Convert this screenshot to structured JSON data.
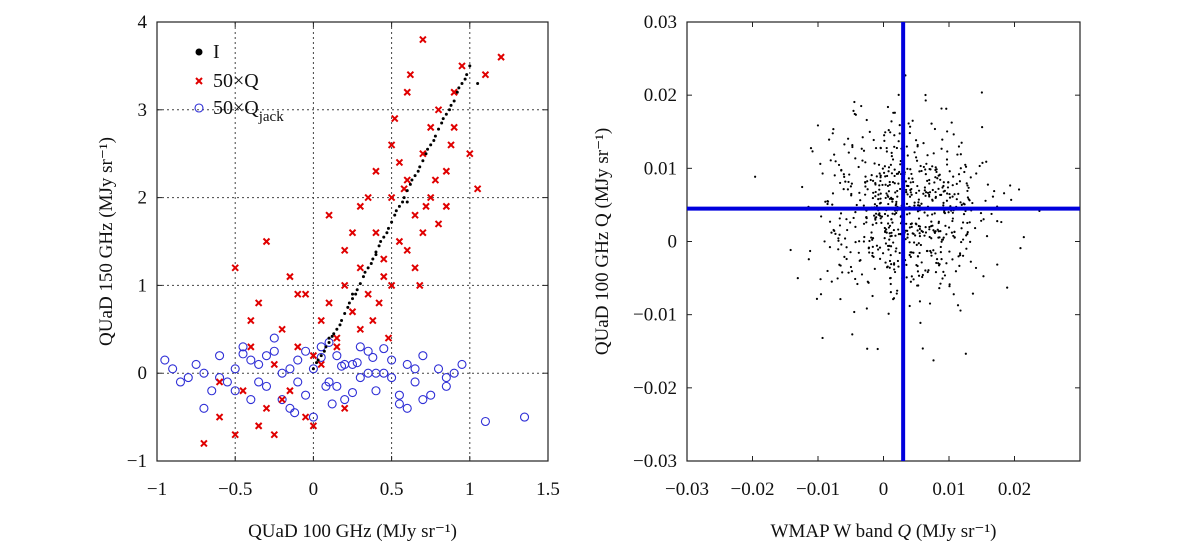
{
  "chart_data": [
    {
      "type": "scatter",
      "xlabel": "QUaD 100 GHz (MJy sr⁻¹)",
      "ylabel": "QUaD 150 GHz (MJy sr⁻¹)",
      "xlim": [
        -1,
        1.5
      ],
      "ylim": [
        -1,
        4
      ],
      "xticks": [
        -1,
        -0.5,
        0,
        0.5,
        1,
        1.5
      ],
      "xtick_labels": [
        "−1",
        "−0.5",
        "0",
        "0.5",
        "1",
        "1.5"
      ],
      "yticks": [
        -1,
        0,
        1,
        2,
        3,
        4
      ],
      "ytick_labels": [
        "−1",
        "0",
        "1",
        "2",
        "3",
        "4"
      ],
      "grid": true,
      "legend_position": "top-left",
      "series": [
        {
          "name": "I",
          "marker": "dot",
          "color": "#000000",
          "x": [
            0.0,
            0.02,
            0.05,
            0.08,
            0.1,
            0.12,
            0.15,
            0.18,
            0.2,
            0.22,
            0.25,
            0.28,
            0.3,
            0.32,
            0.35,
            0.38,
            0.4,
            0.42,
            0.45,
            0.48,
            0.5,
            0.52,
            0.55,
            0.58,
            0.6,
            0.62,
            0.65,
            0.68,
            0.7,
            0.72,
            0.75,
            0.78,
            0.8,
            0.82,
            0.85,
            0.88,
            0.9,
            0.92,
            0.95,
            0.98,
            1.0,
            1.05,
            0.03,
            0.07,
            0.13,
            0.17,
            0.23,
            0.27,
            0.33,
            0.37,
            0.43,
            0.47,
            0.53,
            0.57,
            0.63,
            0.67,
            0.73,
            0.77,
            0.83,
            0.87,
            0.93,
            0.97,
            0.6,
            0.4,
            0.25,
            0.1
          ],
          "y": [
            0.05,
            0.12,
            0.2,
            0.3,
            0.35,
            0.42,
            0.5,
            0.6,
            0.68,
            0.75,
            0.85,
            0.95,
            1.02,
            1.1,
            1.2,
            1.3,
            1.38,
            1.45,
            1.55,
            1.65,
            1.72,
            1.8,
            1.9,
            2.0,
            2.08,
            2.15,
            2.25,
            2.35,
            2.42,
            2.5,
            2.6,
            2.7,
            2.78,
            2.85,
            2.95,
            3.05,
            3.1,
            3.2,
            3.3,
            3.4,
            3.5,
            3.3,
            0.15,
            0.25,
            0.45,
            0.55,
            0.8,
            0.9,
            1.15,
            1.25,
            1.5,
            1.6,
            1.85,
            1.95,
            2.2,
            2.3,
            2.55,
            2.65,
            2.9,
            3.0,
            3.25,
            3.35,
            1.95,
            1.35,
            0.9,
            0.4
          ]
        },
        {
          "name": "50×Q",
          "marker": "x",
          "color": "#e00000",
          "x": [
            -0.7,
            -0.6,
            -0.5,
            -0.45,
            -0.4,
            -0.35,
            -0.3,
            -0.25,
            -0.2,
            -0.15,
            -0.1,
            -0.05,
            0.0,
            0.05,
            0.1,
            0.15,
            0.2,
            0.25,
            0.3,
            0.35,
            0.4,
            0.45,
            0.5,
            0.55,
            0.6,
            0.65,
            0.7,
            0.75,
            0.8,
            0.85,
            0.9,
            0.95,
            1.0,
            1.1,
            1.2,
            -0.5,
            -0.3,
            -0.1,
            0.1,
            0.3,
            0.5,
            0.7,
            0.9,
            -0.4,
            -0.2,
            0.0,
            0.2,
            0.4,
            0.6,
            0.8,
            0.3,
            0.45,
            0.6,
            0.75,
            0.15,
            0.35,
            0.55,
            0.65,
            0.85,
            -0.25,
            -0.05,
            0.25,
            0.5,
            0.7,
            0.42,
            0.58,
            0.68,
            0.78,
            0.2,
            0.38,
            -0.6,
            -0.35,
            -0.15,
            0.05,
            0.52,
            0.62,
            0.72,
            0.48,
            0.88,
            1.05
          ],
          "y": [
            -0.8,
            -0.5,
            -0.7,
            -0.2,
            0.3,
            -0.6,
            -0.4,
            0.1,
            0.5,
            -0.2,
            0.3,
            -0.5,
            0.2,
            0.6,
            0.8,
            0.4,
            1.0,
            0.7,
            1.2,
            0.9,
            1.6,
            1.3,
            2.0,
            1.5,
            2.2,
            1.8,
            2.5,
            2.0,
            3.0,
            2.3,
            2.8,
            3.5,
            2.5,
            3.4,
            3.6,
            1.2,
            1.5,
            0.9,
            1.8,
            1.9,
            2.6,
            3.8,
            3.2,
            0.6,
            -0.3,
            -0.6,
            1.4,
            2.3,
            3.2,
            1.7,
            0.5,
            1.1,
            1.4,
            2.8,
            0.3,
            2.0,
            2.4,
            1.2,
            1.9,
            -0.7,
            0.9,
            1.6,
            1.0,
            1.6,
            0.8,
            2.1,
            1.0,
            2.2,
            -0.4,
            0.6,
            -0.1,
            0.8,
            1.1,
            0.1,
            2.9,
            3.4,
            1.9,
            0.4,
            2.6,
            2.1
          ]
        },
        {
          "name": "50×Q",
          "name_subscript": "jack",
          "marker": "circle",
          "color": "#2f2fd6",
          "x": [
            -0.95,
            -0.9,
            -0.85,
            -0.8,
            -0.75,
            -0.7,
            -0.65,
            -0.6,
            -0.55,
            -0.5,
            -0.45,
            -0.4,
            -0.35,
            -0.3,
            -0.25,
            -0.2,
            -0.15,
            -0.1,
            -0.05,
            0.0,
            0.05,
            0.1,
            0.15,
            0.2,
            0.25,
            0.3,
            0.35,
            0.4,
            0.45,
            0.5,
            0.55,
            0.6,
            0.65,
            0.7,
            0.75,
            0.8,
            0.85,
            0.9,
            0.95,
            1.1,
            1.35,
            -0.5,
            -0.3,
            -0.1,
            0.1,
            0.3,
            0.5,
            -0.4,
            -0.2,
            0.0,
            0.2,
            0.4,
            0.6,
            -0.6,
            -0.15,
            0.15,
            0.35,
            -0.35,
            0.05,
            0.25,
            0.45,
            0.7,
            -0.25,
            0.08,
            -0.05,
            0.12,
            0.28,
            -0.45,
            -0.12,
            0.18,
            0.38,
            0.55,
            -0.7,
            0.65,
            0.85
          ],
          "y": [
            0.15,
            0.05,
            -0.1,
            -0.05,
            0.1,
            0.0,
            -0.2,
            0.2,
            -0.1,
            0.05,
            0.3,
            -0.3,
            0.1,
            -0.15,
            0.25,
            0.0,
            -0.4,
            0.15,
            -0.25,
            0.05,
            0.3,
            -0.1,
            0.2,
            -0.3,
            0.1,
            -0.05,
            0.25,
            -0.2,
            0.0,
            0.15,
            -0.35,
            0.1,
            -0.1,
            0.2,
            -0.25,
            0.05,
            -0.15,
            0.0,
            0.1,
            -0.55,
            -0.5,
            -0.2,
            0.2,
            -0.1,
            0.35,
            0.3,
            -0.05,
            0.15,
            -0.3,
            -0.5,
            0.1,
            0.0,
            -0.4,
            -0.05,
            0.05,
            -0.15,
            0.0,
            -0.1,
            0.18,
            -0.22,
            0.28,
            -0.3,
            0.4,
            -0.15,
            0.25,
            -0.35,
            0.12,
            0.22,
            -0.45,
            0.08,
            0.18,
            -0.25,
            -0.4,
            0.05,
            -0.05
          ]
        }
      ]
    },
    {
      "type": "scatter",
      "xlabel_parts": [
        "WMAP W band ",
        "Q",
        " (MJy sr⁻¹)"
      ],
      "ylabel": "QUaD 100 GHz Q (MJy sr⁻¹)",
      "xlim": [
        -0.03,
        0.03
      ],
      "ylim": [
        -0.03,
        0.03
      ],
      "xticks": [
        -0.03,
        -0.02,
        -0.01,
        0,
        0.01,
        0.02
      ],
      "xtick_labels": [
        "−0.03",
        "−0.02",
        "−0.01",
        "0",
        "0.01",
        "0.02"
      ],
      "yticks": [
        -0.03,
        -0.02,
        -0.01,
        0,
        0.01,
        0.02,
        0.03
      ],
      "ytick_labels": [
        "−0.03",
        "−0.02",
        "−0.01",
        "0",
        "0.01",
        "0.02",
        "0.03"
      ],
      "grid": false,
      "crosshair": {
        "x": 0.003,
        "y": 0.0045,
        "color": "#0000dd"
      },
      "series": [
        {
          "marker": "dot",
          "color": "#000000",
          "count": 700,
          "center": [
            0.003,
            0.0045
          ],
          "spread": [
            0.0065,
            0.0062
          ]
        }
      ]
    }
  ]
}
